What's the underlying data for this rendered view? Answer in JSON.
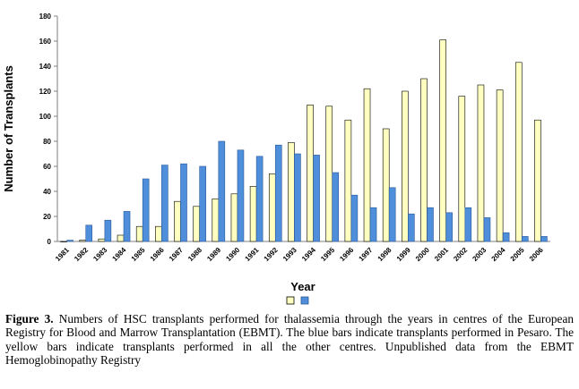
{
  "chart_data": {
    "type": "bar",
    "title": "",
    "xlabel": "Year",
    "ylabel": "Number of Transplants",
    "ylim": [
      0,
      180
    ],
    "yticks": [
      0,
      20,
      40,
      60,
      80,
      100,
      120,
      140,
      160,
      180
    ],
    "grid": false,
    "legend_position": "bottom",
    "categories": [
      "1981",
      "1982",
      "1983",
      "1984",
      "1985",
      "1986",
      "1987",
      "1988",
      "1989",
      "1990",
      "1991",
      "1992",
      "1993",
      "1994",
      "1995",
      "1996",
      "1997",
      "1998",
      "1999",
      "2000",
      "2001",
      "2002",
      "2003",
      "2004",
      "2005",
      "2006"
    ],
    "series": [
      {
        "color": "#ffffc0",
        "stroke": "#000000",
        "values": [
          0,
          1,
          2,
          5,
          12,
          12,
          32,
          28,
          34,
          38,
          44,
          54,
          79,
          109,
          108,
          97,
          122,
          90,
          120,
          130,
          161,
          116,
          125,
          121,
          143,
          97
        ]
      },
      {
        "color": "#4f8edb",
        "stroke": "#2a5a99",
        "values": [
          1,
          13,
          17,
          24,
          50,
          61,
          62,
          60,
          80,
          73,
          68,
          77,
          70,
          69,
          55,
          37,
          27,
          43,
          22,
          27,
          23,
          27,
          19,
          7,
          4,
          4
        ]
      }
    ]
  },
  "caption": {
    "label": "Figure 3.",
    "text": " Numbers of HSC transplants performed for thalassemia through the years in centres of the European Registry for Blood and Marrow Transplantation (EBMT). The blue bars indicate transplants performed in Pesaro. The yellow bars indicate transplants performed in all the other centres. Unpublished data from the EBMT Hemoglobinopathy Registry"
  }
}
